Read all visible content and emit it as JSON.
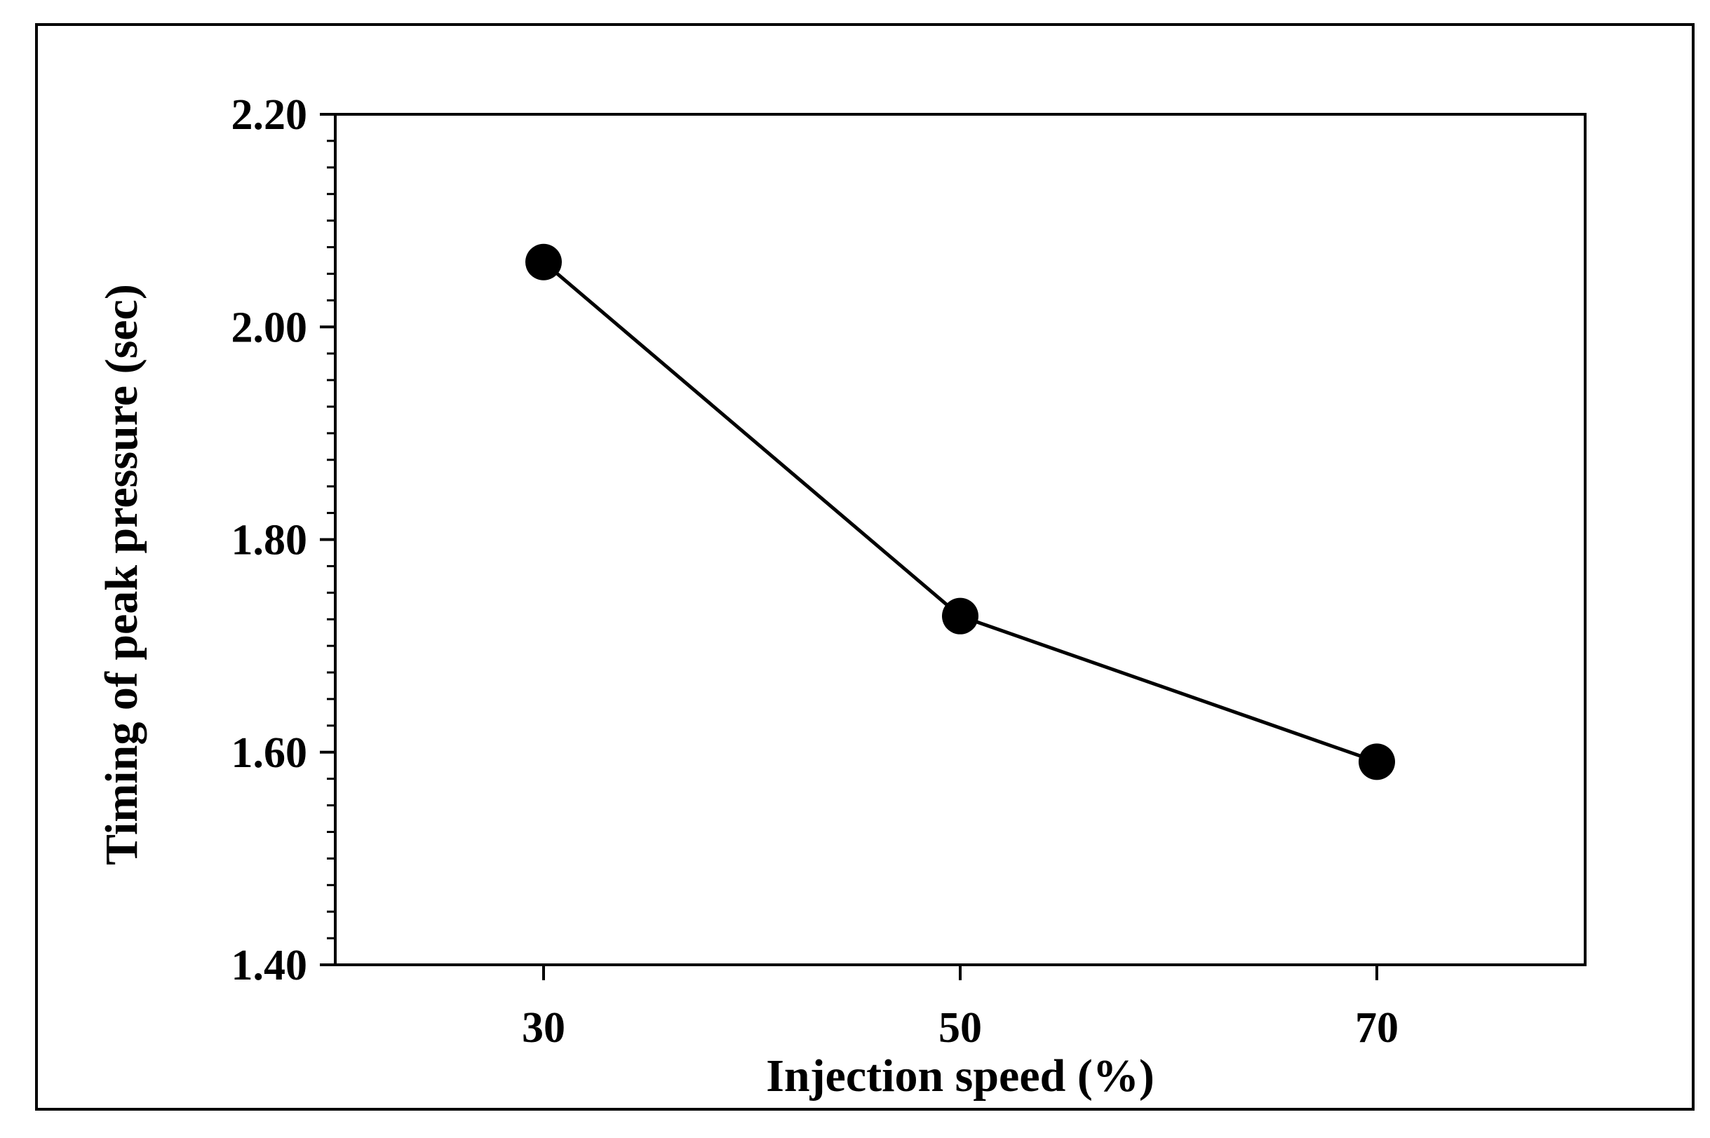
{
  "chart_data": {
    "type": "line",
    "title": "",
    "xlabel": "Injection speed (%)",
    "ylabel": "Timing of peak pressure  (sec)",
    "x": [
      30,
      50,
      70
    ],
    "x_tick_labels": [
      "30",
      "50",
      "70"
    ],
    "xlim": [
      20,
      80
    ],
    "ylim": [
      1.4,
      2.2
    ],
    "y_ticks": [
      1.4,
      1.6,
      1.8,
      2.0,
      2.2
    ],
    "y_tick_labels": [
      "1.40",
      "1.60",
      "1.80",
      "2.00",
      "2.20"
    ],
    "y_minor_step": 0.025,
    "grid": false,
    "legend": "none",
    "series": [
      {
        "values": [
          2.061,
          1.728,
          1.591
        ],
        "color": "#000000",
        "marker": "circle"
      }
    ]
  }
}
